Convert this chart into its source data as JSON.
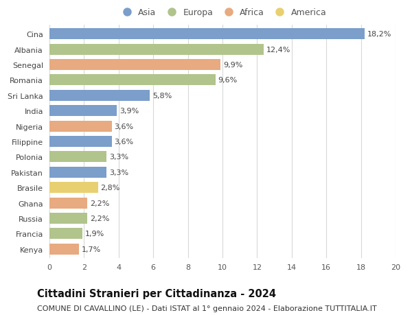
{
  "countries": [
    "Cina",
    "Albania",
    "Senegal",
    "Romania",
    "Sri Lanka",
    "India",
    "Nigeria",
    "Filippine",
    "Polonia",
    "Pakistan",
    "Brasile",
    "Ghana",
    "Russia",
    "Francia",
    "Kenya"
  ],
  "values": [
    18.2,
    12.4,
    9.9,
    9.6,
    5.8,
    3.9,
    3.6,
    3.6,
    3.3,
    3.3,
    2.8,
    2.2,
    2.2,
    1.9,
    1.7
  ],
  "labels": [
    "18,2%",
    "12,4%",
    "9,9%",
    "9,6%",
    "5,8%",
    "3,9%",
    "3,6%",
    "3,6%",
    "3,3%",
    "3,3%",
    "2,8%",
    "2,2%",
    "2,2%",
    "1,9%",
    "1,7%"
  ],
  "continents": [
    "Asia",
    "Europa",
    "Africa",
    "Europa",
    "Asia",
    "Asia",
    "Africa",
    "Asia",
    "Europa",
    "Asia",
    "America",
    "Africa",
    "Europa",
    "Europa",
    "Africa"
  ],
  "colors": {
    "Asia": "#7b9eca",
    "Europa": "#b0c48c",
    "Africa": "#e8aa80",
    "America": "#e8d070"
  },
  "xlim": [
    0,
    20
  ],
  "xticks": [
    0,
    2,
    4,
    6,
    8,
    10,
    12,
    14,
    16,
    18,
    20
  ],
  "title": "Cittadini Stranieri per Cittadinanza - 2024",
  "subtitle": "COMUNE DI CAVALLINO (LE) - Dati ISTAT al 1° gennaio 2024 - Elaborazione TUTTITALIA.IT",
  "background_color": "#ffffff",
  "grid_color": "#d8d8d8",
  "bar_height": 0.72,
  "label_fontsize": 8,
  "tick_fontsize": 8,
  "title_fontsize": 10.5,
  "subtitle_fontsize": 8,
  "legend_fontsize": 9,
  "legend_marker_size": 9
}
